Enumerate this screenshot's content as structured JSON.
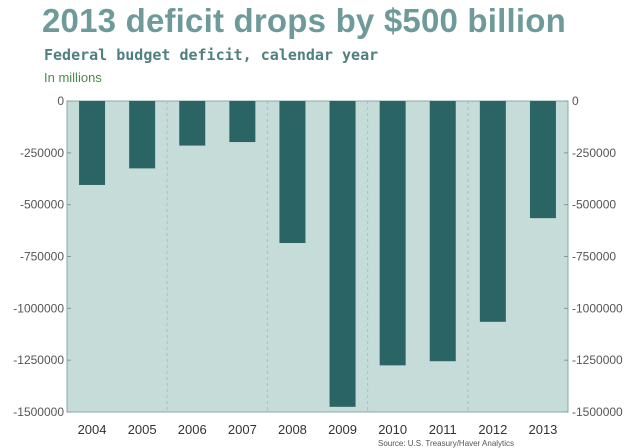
{
  "header": {
    "title": "2013 deficit drops by $500 billion",
    "subtitle": "Federal budget deficit, calendar year",
    "units": "In millions"
  },
  "source": "Source: U.S. Treasury/Haver Analytics",
  "colors": {
    "bar": "#2a6464",
    "plot_bg": "#c5dcd8",
    "grid": "#a9c2be",
    "title": "#6f9a9a"
  },
  "chart_data": {
    "type": "bar",
    "title": "2013 deficit drops by $500 billion",
    "subtitle": "Federal budget deficit, calendar year",
    "ylabel": "In millions",
    "categories": [
      "2004",
      "2005",
      "2006",
      "2007",
      "2008",
      "2009",
      "2010",
      "2011",
      "2012",
      "2013"
    ],
    "values": [
      -405000,
      -325000,
      -215000,
      -198000,
      -685000,
      -1475000,
      -1275000,
      -1255000,
      -1065000,
      -565000
    ],
    "ylim": [
      -1500000,
      0
    ],
    "yticks": [
      0,
      -250000,
      -500000,
      -750000,
      -1000000,
      -1250000,
      -1500000
    ],
    "ytick_labels": [
      "0",
      "-250000",
      "-500000",
      "-750000",
      "-1000000",
      "-1250000",
      "-1500000"
    ],
    "axis_labels_both_sides": true,
    "grid": "vertical dashed separators every two years",
    "legend": "none"
  }
}
